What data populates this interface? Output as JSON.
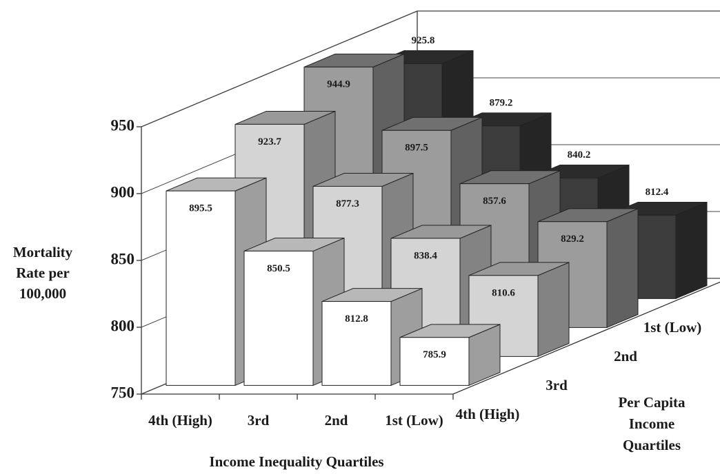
{
  "chart_data": {
    "type": "bar3d",
    "y_label": [
      "Mortality",
      "Rate per",
      "100,000"
    ],
    "x_label": "Income Inequality Quartiles",
    "depth_label": [
      "Per Capita",
      "Income",
      "Quartiles"
    ],
    "categories": [
      "4th (High)",
      "3rd",
      "2nd",
      "1st (Low)"
    ],
    "series": [
      {
        "name": "4th (High)",
        "color": "#ffffff",
        "values": [
          895.5,
          850.5,
          812.8,
          785.9
        ]
      },
      {
        "name": "3rd",
        "color": "#d4d4d4",
        "values": [
          923.7,
          877.3,
          838.4,
          810.6
        ]
      },
      {
        "name": "2nd",
        "color": "#9c9c9c",
        "values": [
          944.9,
          897.5,
          857.6,
          829.2
        ]
      },
      {
        "name": "1st (Low)",
        "color": "#3c3c3c",
        "values": [
          925.8,
          879.2,
          840.2,
          812.4
        ]
      }
    ],
    "ylim": [
      750,
      950
    ],
    "yticks": [
      750,
      800,
      850,
      900,
      950
    ],
    "grid": true
  }
}
